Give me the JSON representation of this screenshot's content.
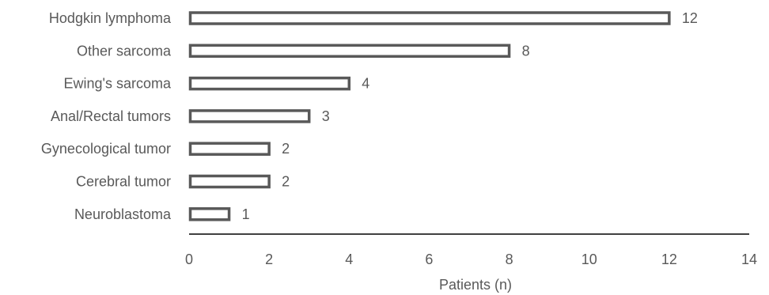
{
  "chart_data": {
    "type": "bar",
    "orientation": "horizontal",
    "categories": [
      "Hodgkin lymphoma",
      "Other sarcoma",
      "Ewing's sarcoma",
      "Anal/Rectal tumors",
      "Gynecological tumor",
      "Cerebral tumor",
      "Neuroblastoma"
    ],
    "values": [
      12,
      8,
      4,
      3,
      2,
      2,
      1
    ],
    "data_labels": [
      "12",
      "8",
      "4",
      "3",
      "2",
      "2",
      "1"
    ],
    "xlabel": "Patients (n)",
    "ylabel": "",
    "xlim": [
      0,
      14
    ],
    "x_ticks": [
      0,
      2,
      4,
      6,
      8,
      10,
      12,
      14
    ],
    "x_tick_labels": [
      "0",
      "2",
      "4",
      "6",
      "8",
      "10",
      "12",
      "14"
    ],
    "grid": false,
    "legend": "none",
    "colors": {
      "bar_outline": "#595959",
      "bar_fill": "#ffffff",
      "axis_line": "#000000",
      "text": "#595959"
    }
  }
}
